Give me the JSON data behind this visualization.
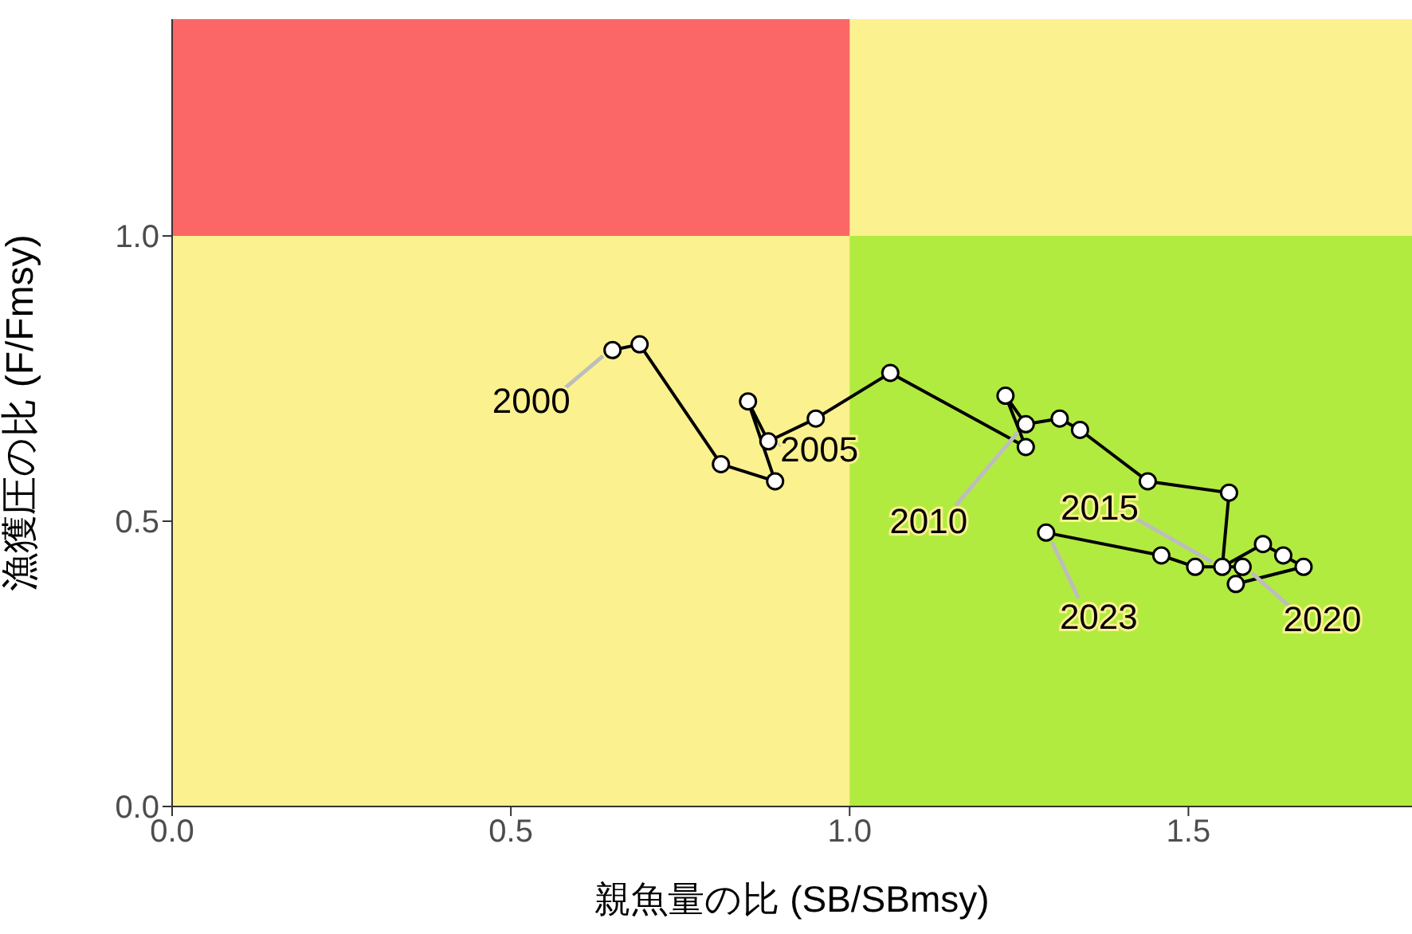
{
  "chart_data": {
    "type": "line",
    "xlabel": "親魚量の比 (SB/SBmsy)",
    "ylabel": "漁獲圧の比 (F/Fmsy)",
    "x": [
      0.65,
      0.69,
      0.81,
      0.89,
      0.85,
      0.88,
      0.95,
      1.06,
      1.26,
      1.23,
      1.26,
      1.31,
      1.34,
      1.44,
      1.56,
      1.55,
      1.61,
      1.64,
      1.67,
      1.57,
      1.58,
      1.51,
      1.46,
      1.29
    ],
    "series": [
      {
        "color": "#000000",
        "values": [
          0.8,
          0.81,
          0.6,
          0.57,
          0.71,
          0.64,
          0.68,
          0.76,
          0.63,
          0.72,
          0.67,
          0.68,
          0.66,
          0.57,
          0.55,
          0.42,
          0.46,
          0.44,
          0.42,
          0.39,
          0.42,
          0.42,
          0.44,
          0.48
        ]
      }
    ],
    "marker": "circle",
    "line_style": "solid",
    "xlim": [
      0,
      1.83
    ],
    "ylim": [
      0,
      1.38
    ],
    "xticks": [
      {
        "value": 0,
        "label": "0.0"
      },
      0.5,
      {
        "value": 1,
        "label": "1.0"
      },
      1.5
    ],
    "yticks": [
      {
        "value": 0,
        "label": "0.0"
      },
      0.5,
      {
        "value": 1,
        "label": "1.0"
      }
    ],
    "bands": [
      {
        "axis": "x",
        "from": 0,
        "to": 1.83,
        "color": "#fbf18f"
      },
      {
        "axis": "y",
        "from": 1,
        "to": 1.38,
        "color": "#fb6767"
      },
      {
        "axis": "x",
        "from": 1,
        "to": 1.83,
        "color": "#b2eb3f"
      }
    ],
    "annotations": [
      {
        "text": "2000",
        "x": 0.65,
        "y": 0.8
      },
      {
        "text": "2005",
        "x": 0.88,
        "y": 0.64
      },
      {
        "text": "2010",
        "x": 1.26,
        "y": 0.67
      },
      {
        "text": "2015",
        "x": 1.55,
        "y": 0.42
      },
      {
        "text": "2020",
        "x": 1.58,
        "y": 0.42
      },
      {
        "text": "2023",
        "x": 1.29,
        "y": 0.48
      }
    ]
  }
}
